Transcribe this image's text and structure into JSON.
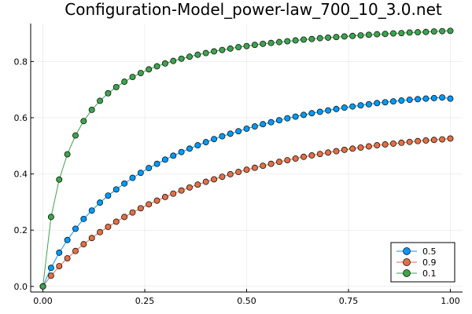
{
  "chart_data": {
    "type": "line",
    "title": "Configuration-Model_power-law_700_10_3.0.net",
    "xlabel": "",
    "ylabel": "",
    "xlim": [
      -0.03,
      1.03
    ],
    "ylim": [
      -0.02,
      0.935
    ],
    "x_ticks": [
      "0.00",
      "0.25",
      "0.50",
      "0.75",
      "1.00"
    ],
    "y_ticks": [
      "0.0",
      "0.2",
      "0.4",
      "0.6",
      "0.8"
    ],
    "grid": true,
    "legend_position": "bottom-right",
    "x": [
      0.0,
      0.02,
      0.04,
      0.06,
      0.08,
      0.1,
      0.12,
      0.14,
      0.16,
      0.18,
      0.2,
      0.22,
      0.24,
      0.26,
      0.28,
      0.3,
      0.32,
      0.34,
      0.36,
      0.38,
      0.4,
      0.42,
      0.44,
      0.46,
      0.48,
      0.5,
      0.52,
      0.54,
      0.56,
      0.58,
      0.6,
      0.62,
      0.64,
      0.66,
      0.68,
      0.7,
      0.72,
      0.74,
      0.76,
      0.78,
      0.8,
      0.82,
      0.84,
      0.86,
      0.88,
      0.9,
      0.92,
      0.94,
      0.96,
      0.98,
      1.0
    ],
    "series": [
      {
        "name": "0.5",
        "color": "#009af9",
        "values": [
          0.0,
          0.066,
          0.12,
          0.165,
          0.205,
          0.24,
          0.27,
          0.298,
          0.323,
          0.345,
          0.366,
          0.386,
          0.404,
          0.421,
          0.436,
          0.451,
          0.465,
          0.478,
          0.49,
          0.502,
          0.513,
          0.524,
          0.534,
          0.543,
          0.552,
          0.561,
          0.569,
          0.577,
          0.584,
          0.591,
          0.598,
          0.604,
          0.61,
          0.616,
          0.621,
          0.626,
          0.631,
          0.636,
          0.64,
          0.644,
          0.648,
          0.652,
          0.655,
          0.658,
          0.661,
          0.664,
          0.666,
          0.668,
          0.67,
          0.672,
          0.668
        ]
      },
      {
        "name": "0.9",
        "color": "#e26f46",
        "values": [
          0.0,
          0.038,
          0.072,
          0.1,
          0.126,
          0.15,
          0.172,
          0.193,
          0.212,
          0.23,
          0.247,
          0.263,
          0.278,
          0.292,
          0.305,
          0.318,
          0.33,
          0.341,
          0.352,
          0.362,
          0.372,
          0.381,
          0.39,
          0.399,
          0.407,
          0.415,
          0.422,
          0.429,
          0.436,
          0.443,
          0.449,
          0.455,
          0.461,
          0.466,
          0.471,
          0.476,
          0.481,
          0.486,
          0.49,
          0.494,
          0.498,
          0.502,
          0.505,
          0.508,
          0.511,
          0.514,
          0.517,
          0.519,
          0.521,
          0.523,
          0.526
        ]
      },
      {
        "name": "0.1",
        "color": "#3da44d",
        "values": [
          0.0,
          0.247,
          0.38,
          0.47,
          0.537,
          0.588,
          0.628,
          0.66,
          0.687,
          0.709,
          0.728,
          0.745,
          0.759,
          0.772,
          0.783,
          0.793,
          0.802,
          0.81,
          0.817,
          0.824,
          0.83,
          0.836,
          0.841,
          0.846,
          0.851,
          0.855,
          0.859,
          0.863,
          0.866,
          0.869,
          0.872,
          0.875,
          0.878,
          0.88,
          0.883,
          0.885,
          0.887,
          0.889,
          0.891,
          0.893,
          0.895,
          0.897,
          0.898,
          0.9,
          0.901,
          0.903,
          0.904,
          0.905,
          0.907,
          0.908,
          0.909
        ]
      }
    ]
  }
}
